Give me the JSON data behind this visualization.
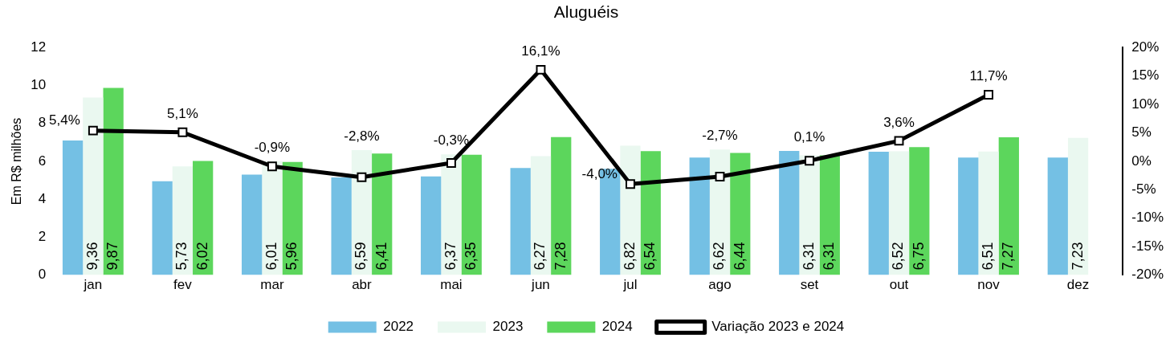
{
  "chart_data": {
    "type": "bar",
    "title": "Aluguéis",
    "ylabel": "Em R$ milhões",
    "categories": [
      "jan",
      "fev",
      "mar",
      "abr",
      "mai",
      "jun",
      "jul",
      "ago",
      "set",
      "out",
      "nov",
      "dez"
    ],
    "series": [
      {
        "name": "2022",
        "color": "#74c0e4",
        "values": [
          7.1,
          4.95,
          5.3,
          5.15,
          5.2,
          5.65,
          5.6,
          6.2,
          6.55,
          6.5,
          6.2,
          6.2
        ]
      },
      {
        "name": "2023",
        "color": "#eaf8f0",
        "values": [
          9.36,
          5.73,
          6.01,
          6.59,
          6.37,
          6.27,
          6.82,
          6.62,
          6.31,
          6.52,
          6.51,
          7.23
        ],
        "value_labels": [
          "9,36",
          "5,73",
          "6,01",
          "6,59",
          "6,37",
          "6,27",
          "6,82",
          "6,62",
          "6,31",
          "6,52",
          "6,51",
          "7,23"
        ]
      },
      {
        "name": "2024",
        "color": "#5cd65c",
        "values": [
          9.87,
          6.02,
          5.96,
          6.41,
          6.35,
          7.28,
          6.54,
          6.44,
          6.31,
          6.75,
          7.27,
          null
        ],
        "value_labels": [
          "9,87",
          "6,02",
          "5,96",
          "6,41",
          "6,35",
          "7,28",
          "6,54",
          "6,44",
          "6,31",
          "6,75",
          "7,27",
          null
        ]
      },
      {
        "name": "Variação 2023 e 2024",
        "type": "line",
        "axis": "y2",
        "color": "#000000",
        "marker": "square",
        "values": [
          5.4,
          5.1,
          -0.9,
          -2.8,
          -0.3,
          16.1,
          -4.0,
          -2.7,
          0.1,
          3.6,
          11.7,
          null
        ],
        "value_labels": [
          "5,4%",
          "5,1%",
          "-0,9%",
          "-2,8%",
          "-0,3%",
          "16,1%",
          "-4,0%",
          "-2,7%",
          "0,1%",
          "3,6%",
          "11,7%",
          null
        ]
      }
    ],
    "ylim": [
      0,
      12
    ],
    "yticks": [
      0,
      2,
      4,
      6,
      8,
      10,
      12
    ],
    "y2lim": [
      -20,
      20
    ],
    "y2ticks": [
      {
        "value": -20,
        "label": "-20%"
      },
      {
        "value": -15,
        "label": "-15%"
      },
      {
        "value": -10,
        "label": "-10%"
      },
      {
        "value": -5,
        "label": "-5%"
      },
      {
        "value": 0,
        "label": "0%"
      },
      {
        "value": 5,
        "label": "5%"
      },
      {
        "value": 10,
        "label": "10%"
      },
      {
        "value": 15,
        "label": "15%"
      },
      {
        "value": 20,
        "label": "20%"
      }
    ],
    "grid": false,
    "legend": "bottom"
  }
}
